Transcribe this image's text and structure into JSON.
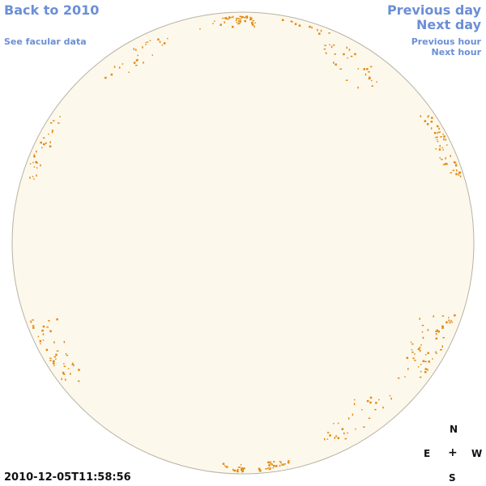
{
  "nav": {
    "back": "Back to 2010",
    "facular": "See facular data",
    "previous_day": "Previous day",
    "next_day": "Next day",
    "previous_hour": "Previous hour",
    "next_hour": "Next hour"
  },
  "compass": {
    "n": "N",
    "e": "E",
    "center": "+",
    "w": "W",
    "s": "S"
  },
  "timestamp": "2010-12-05T11:58:56",
  "colors": {
    "link": "#6b8fd6",
    "disk_fill": "#fdf8ec",
    "disk_stroke": "#b9b2a4",
    "facula": "#e08a12"
  },
  "facula_regions": [
    {
      "lon": -78,
      "lat": 26,
      "count": 60
    },
    {
      "lon": -50,
      "lat": 52,
      "count": 30
    },
    {
      "lon": -65,
      "lat": -27,
      "count": 55
    },
    {
      "lon": -50,
      "lat": -50,
      "count": 30
    },
    {
      "lon": -30,
      "lat": -80,
      "count": 40
    },
    {
      "lon": 10,
      "lat": -82,
      "count": 35
    },
    {
      "lon": 70,
      "lat": -28,
      "count": 45
    },
    {
      "lon": 80,
      "lat": 25,
      "count": 45
    },
    {
      "lon": 55,
      "lat": 55,
      "count": 25
    },
    {
      "lon": 0,
      "lat": 80,
      "count": 40
    },
    {
      "lon": -60,
      "lat": 75,
      "count": 20
    },
    {
      "lon": 30,
      "lat": 75,
      "count": 20
    }
  ]
}
